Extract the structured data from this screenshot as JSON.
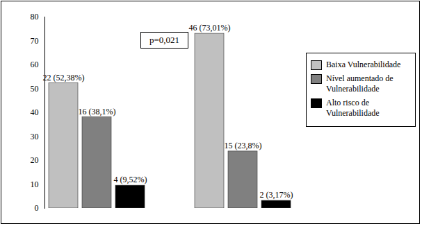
{
  "chart_data": {
    "type": "bar",
    "categories": [
      null,
      null
    ],
    "series": [
      {
        "name": "Baixa Vulnerabilidade",
        "color": "#c0c0c0",
        "values": [
          52.38,
          73.01
        ],
        "value_labels": [
          "22 (52,38%)",
          "46 (73,01%)"
        ]
      },
      {
        "name": "Nível aumentado de Vulnerabilidade",
        "color": "#808080",
        "values": [
          38.1,
          23.8
        ],
        "value_labels": [
          "16 (38,1%)",
          "15 (23,8%)"
        ]
      },
      {
        "name": "Alto risco de Vulnerabilidade",
        "color": "#000000",
        "values": [
          9.52,
          3.17
        ],
        "value_labels": [
          "4 (9,52%)",
          "2 (3,17%)"
        ]
      }
    ],
    "annotation": "p=0,021",
    "ylim": [
      0,
      80
    ],
    "yticks": [
      0,
      10,
      20,
      30,
      40,
      50,
      60,
      70,
      80
    ],
    "grid": false,
    "legend": "right",
    "data_labels": true
  }
}
